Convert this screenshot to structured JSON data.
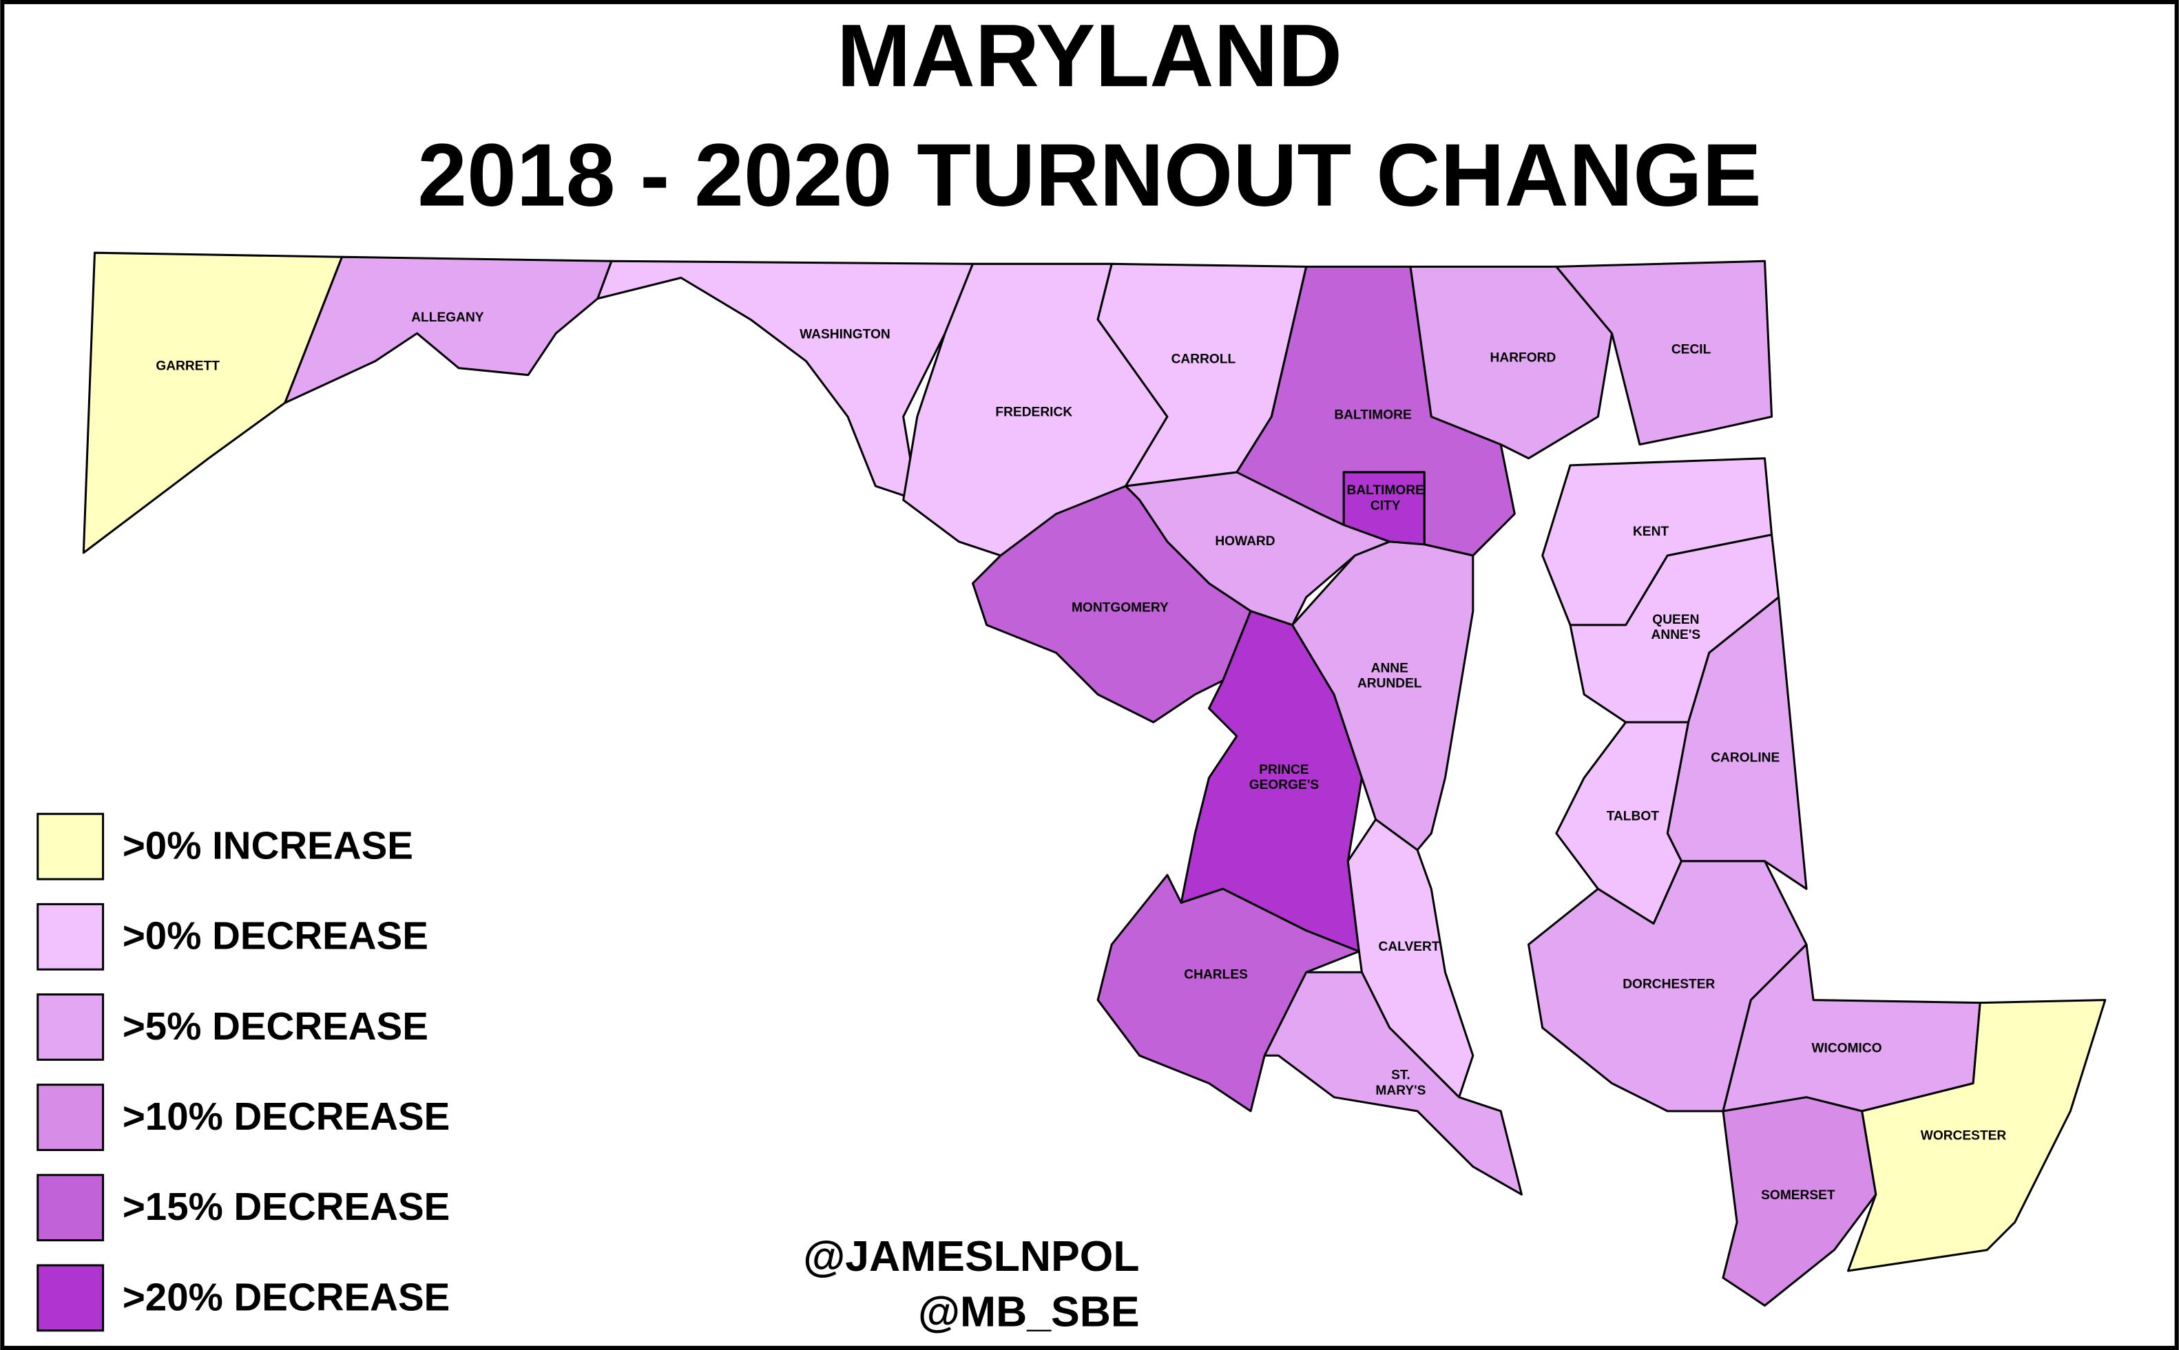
{
  "title": [
    "MARYLAND",
    "2018 - 2020 TURNOUT CHANGE"
  ],
  "legend": [
    {
      "label": ">0% INCREASE",
      "color": "#ffffc0"
    },
    {
      "label": ">0% DECREASE",
      "color": "#f2c2ff"
    },
    {
      "label": ">5% DECREASE",
      "color": "#e2a6f2"
    },
    {
      "label": ">10% DECREASE",
      "color": "#d78ce8"
    },
    {
      "label": ">15% DECREASE",
      "color": "#c262d9"
    },
    {
      "label": ">20% DECREASE",
      "color": "#b034cf"
    }
  ],
  "counties": [
    {
      "label": [
        "GARRETT"
      ],
      "color": "#ffffc0"
    },
    {
      "label": [
        "ALLEGANY"
      ],
      "color": "#e2a6f2"
    },
    {
      "label": [
        "WASHINGTON"
      ],
      "color": "#f2c2ff"
    },
    {
      "label": [
        "FREDERICK"
      ],
      "color": "#f2c2ff"
    },
    {
      "label": [
        "CARROLL"
      ],
      "color": "#f2c2ff"
    },
    {
      "label": [
        "BALTIMORE"
      ],
      "color": "#c262d9"
    },
    {
      "label": [
        "HARFORD"
      ],
      "color": "#e2a6f2"
    },
    {
      "label": [
        "CECIL"
      ],
      "color": "#e2a6f2"
    },
    {
      "label": [
        "BALTIMORE",
        "CITY"
      ],
      "color": "#b034cf"
    },
    {
      "label": [
        "HOWARD"
      ],
      "color": "#e2a6f2"
    },
    {
      "label": [
        "MONTGOMERY"
      ],
      "color": "#c262d9"
    },
    {
      "label": [
        "PRINCE",
        "GEORGE'S"
      ],
      "color": "#b034cf"
    },
    {
      "label": [
        "ANNE",
        "ARUNDEL"
      ],
      "color": "#e2a6f2"
    },
    {
      "label": [
        "CALVERT"
      ],
      "color": "#f2c2ff"
    },
    {
      "label": [
        "CHARLES"
      ],
      "color": "#c262d9"
    },
    {
      "label": [
        "ST.",
        "MARY'S"
      ],
      "color": "#e2a6f2"
    },
    {
      "label": [
        "KENT"
      ],
      "color": "#f2c2ff"
    },
    {
      "label": [
        "QUEEN",
        "ANNE'S"
      ],
      "color": "#f2c2ff"
    },
    {
      "label": [
        "CAROLINE"
      ],
      "color": "#e2a6f2"
    },
    {
      "label": [
        "TALBOT"
      ],
      "color": "#f2c2ff"
    },
    {
      "label": [
        "DORCHESTER"
      ],
      "color": "#e2a6f2"
    },
    {
      "label": [
        "WICOMICO"
      ],
      "color": "#e2a6f2"
    },
    {
      "label": [
        "SOMERSET"
      ],
      "color": "#d78ce8"
    },
    {
      "label": [
        "WORCESTER"
      ],
      "color": "#ffffc0"
    }
  ],
  "credits": [
    "@JAMESLNPOL",
    "@MB_SBE"
  ]
}
